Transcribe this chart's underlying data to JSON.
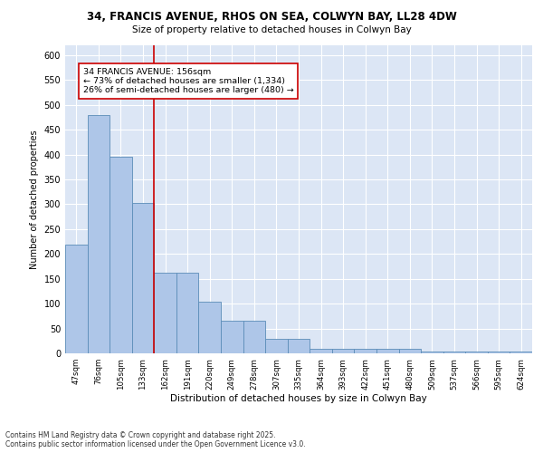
{
  "title_line1": "34, FRANCIS AVENUE, RHOS ON SEA, COLWYN BAY, LL28 4DW",
  "title_line2": "Size of property relative to detached houses in Colwyn Bay",
  "xlabel": "Distribution of detached houses by size in Colwyn Bay",
  "ylabel": "Number of detached properties",
  "categories": [
    "47sqm",
    "76sqm",
    "105sqm",
    "133sqm",
    "162sqm",
    "191sqm",
    "220sqm",
    "249sqm",
    "278sqm",
    "307sqm",
    "335sqm",
    "364sqm",
    "393sqm",
    "422sqm",
    "451sqm",
    "480sqm",
    "509sqm",
    "537sqm",
    "566sqm",
    "595sqm",
    "624sqm"
  ],
  "values": [
    218,
    479,
    395,
    302,
    163,
    163,
    104,
    65,
    65,
    30,
    30,
    10,
    10,
    10,
    10,
    10,
    4,
    4,
    4,
    4,
    4
  ],
  "bar_color": "#aec6e8",
  "bar_edgecolor": "#5b8db8",
  "background_color": "#dce6f5",
  "grid_color": "#ffffff",
  "annotation_text": "34 FRANCIS AVENUE: 156sqm\n← 73% of detached houses are smaller (1,334)\n26% of semi-detached houses are larger (480) →",
  "vline_color": "#cc0000",
  "annotation_box_edgecolor": "#cc0000",
  "ylim": [
    0,
    620
  ],
  "yticks": [
    0,
    50,
    100,
    150,
    200,
    250,
    300,
    350,
    400,
    450,
    500,
    550,
    600
  ],
  "footer_line1": "Contains HM Land Registry data © Crown copyright and database right 2025.",
  "footer_line2": "Contains public sector information licensed under the Open Government Licence v3.0."
}
